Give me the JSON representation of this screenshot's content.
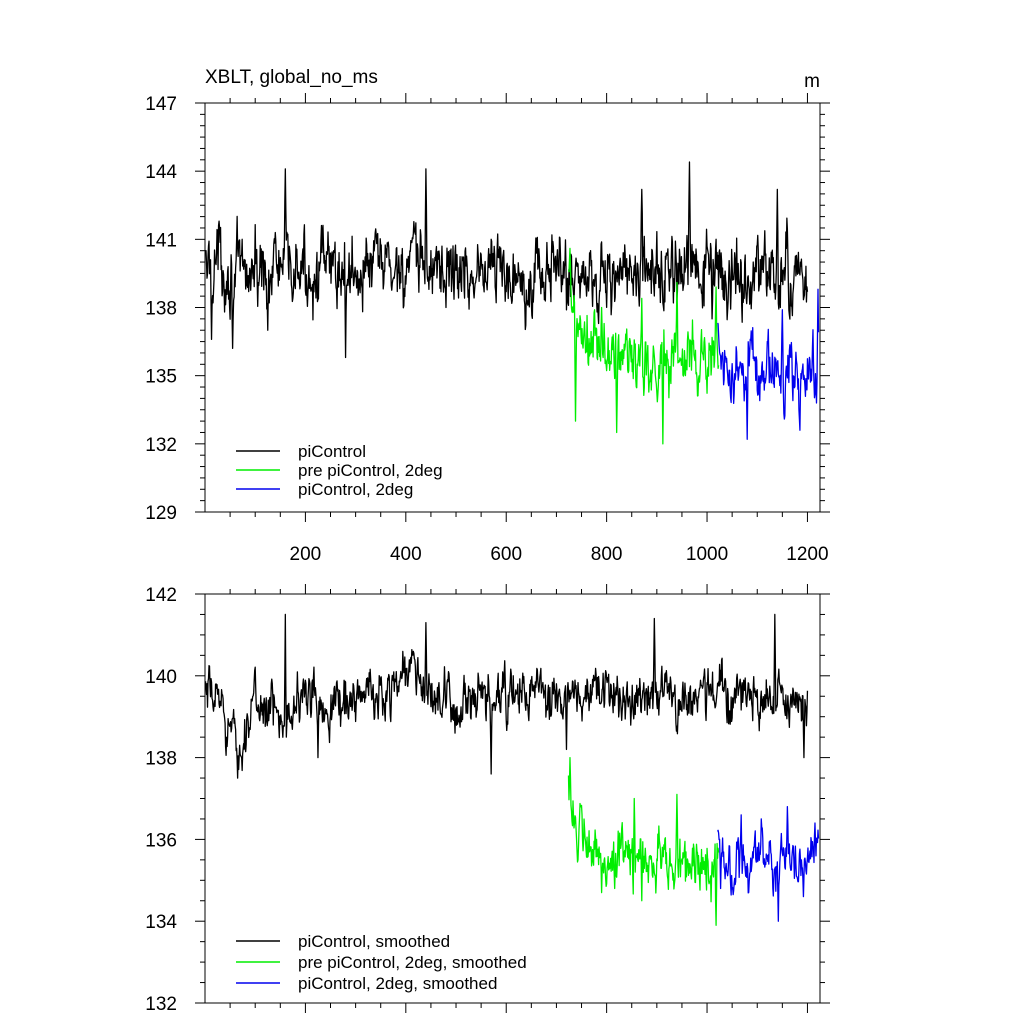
{
  "chart_data": [
    {
      "type": "line",
      "title": "XBLT, global_no_ms",
      "units": "m",
      "xlim": [
        0,
        1225
      ],
      "ylim": [
        129,
        147
      ],
      "yticks": [
        129,
        132,
        135,
        138,
        141,
        144,
        147
      ],
      "xticks": [
        200,
        400,
        600,
        800,
        1000,
        1200
      ],
      "show_x_tick_labels": true,
      "legend_placement": "bottom-left",
      "series": [
        {
          "name": "piControl",
          "color": "#000000",
          "x_range": [
            1,
            1200
          ],
          "keypoints": [
            [
              1,
              139.5
            ],
            [
              20,
              140.2
            ],
            [
              60,
              139.3
            ],
            [
              100,
              139.6
            ],
            [
              150,
              139.8
            ],
            [
              200,
              139.5
            ],
            [
              250,
              139.7
            ],
            [
              300,
              139.6
            ],
            [
              350,
              139.9
            ],
            [
              400,
              139.7
            ],
            [
              450,
              139.9
            ],
            [
              500,
              139.6
            ],
            [
              550,
              139.6
            ],
            [
              600,
              139.6
            ],
            [
              650,
              139.5
            ],
            [
              700,
              139.6
            ],
            [
              750,
              139.4
            ],
            [
              800,
              139.5
            ],
            [
              850,
              139.4
            ],
            [
              900,
              139.6
            ],
            [
              950,
              139.5
            ],
            [
              1000,
              139.6
            ],
            [
              1050,
              139.3
            ],
            [
              1100,
              139.4
            ],
            [
              1150,
              139.4
            ],
            [
              1200,
              139.2
            ]
          ],
          "noise": 1.15,
          "extremes": [
            [
              13,
              136.6
            ],
            [
              28,
              141.8
            ],
            [
              55,
              136.2
            ],
            [
              125,
              137.0
            ],
            [
              140,
              141.3
            ],
            [
              160,
              144.1
            ],
            [
              280,
              135.8
            ],
            [
              440,
              144.1
            ],
            [
              480,
              138.0
            ],
            [
              570,
              141.0
            ],
            [
              760,
              138.5
            ],
            [
              870,
              143.2
            ],
            [
              965,
              144.4
            ],
            [
              1010,
              137.5
            ],
            [
              1140,
              143.2
            ],
            [
              1210,
              139.5
            ]
          ]
        },
        {
          "name": "pre piControl, 2deg",
          "color": "#00ee00",
          "x_range": [
            724,
            1023
          ],
          "keypoints": [
            [
              724,
              138.8
            ],
            [
              735,
              137.5
            ],
            [
              760,
              136.3
            ],
            [
              800,
              135.9
            ],
            [
              850,
              135.8
            ],
            [
              900,
              135.5
            ],
            [
              950,
              135.9
            ],
            [
              1000,
              135.7
            ],
            [
              1023,
              135.9
            ]
          ],
          "noise": 1.05,
          "extremes": [
            [
              727,
              140.6
            ],
            [
              738,
              133.0
            ],
            [
              790,
              138.0
            ],
            [
              820,
              132.5
            ],
            [
              870,
              138.4
            ],
            [
              912,
              132.0
            ],
            [
              940,
              139.1
            ],
            [
              1018,
              138.9
            ]
          ]
        },
        {
          "name": "piControl, 2deg",
          "color": "#0000ee",
          "x_range": [
            1021,
            1222
          ],
          "keypoints": [
            [
              1021,
              136.5
            ],
            [
              1050,
              135.3
            ],
            [
              1100,
              135.2
            ],
            [
              1150,
              135.1
            ],
            [
              1200,
              135.0
            ],
            [
              1222,
              135.4
            ]
          ],
          "noise": 0.95,
          "extremes": [
            [
              1080,
              132.2
            ],
            [
              1150,
              137.9
            ],
            [
              1185,
              132.6
            ],
            [
              1221,
              138.8
            ],
            [
              1218,
              133.8
            ]
          ]
        }
      ]
    },
    {
      "type": "line",
      "title": "",
      "units": "",
      "xlim": [
        0,
        1225
      ],
      "ylim": [
        132,
        142
      ],
      "yticks": [
        132,
        134,
        136,
        138,
        140,
        142
      ],
      "xticks": [
        200,
        400,
        600,
        800,
        1000,
        1200
      ],
      "show_x_tick_labels": false,
      "legend_placement": "bottom-left",
      "series": [
        {
          "name": "piControl, smoothed",
          "color": "#000000",
          "x_range": [
            1,
            1200
          ],
          "keypoints": [
            [
              1,
              139.4
            ],
            [
              30,
              139.5
            ],
            [
              65,
              138.1
            ],
            [
              100,
              139.4
            ],
            [
              150,
              139.0
            ],
            [
              200,
              139.5
            ],
            [
              250,
              139.3
            ],
            [
              300,
              139.5
            ],
            [
              350,
              139.5
            ],
            [
              410,
              140.3
            ],
            [
              450,
              139.4
            ],
            [
              500,
              139.2
            ],
            [
              550,
              139.3
            ],
            [
              600,
              139.5
            ],
            [
              650,
              139.6
            ],
            [
              700,
              139.4
            ],
            [
              730,
              139.4
            ],
            [
              800,
              139.6
            ],
            [
              850,
              139.4
            ],
            [
              900,
              139.7
            ],
            [
              950,
              139.4
            ],
            [
              1000,
              139.6
            ],
            [
              1050,
              139.6
            ],
            [
              1100,
              139.4
            ],
            [
              1150,
              139.3
            ],
            [
              1200,
              139.2
            ]
          ],
          "noise": 0.45,
          "extremes": [
            [
              65,
              137.5
            ],
            [
              160,
              141.5
            ],
            [
              225,
              138.0
            ],
            [
              440,
              141.3
            ],
            [
              570,
              137.6
            ],
            [
              720,
              138.2
            ],
            [
              895,
              141.4
            ],
            [
              1135,
              141.5
            ],
            [
              1193,
              138.0
            ]
          ]
        },
        {
          "name": "pre piControl, 2deg, smoothed",
          "color": "#00ee00",
          "x_range": [
            724,
            1023
          ],
          "keypoints": [
            [
              724,
              137.6
            ],
            [
              740,
              136.1
            ],
            [
              770,
              135.6
            ],
            [
              800,
              135.5
            ],
            [
              850,
              135.6
            ],
            [
              900,
              135.5
            ],
            [
              950,
              135.4
            ],
            [
              1000,
              135.3
            ],
            [
              1023,
              135.4
            ]
          ],
          "noise": 0.5,
          "extremes": [
            [
              727,
              138.0
            ],
            [
              790,
              134.7
            ],
            [
              855,
              137.0
            ],
            [
              870,
              134.5
            ],
            [
              940,
              137.1
            ],
            [
              1018,
              133.9
            ]
          ]
        },
        {
          "name": "piControl, 2deg, smoothed",
          "color": "#0000ee",
          "x_range": [
            1021,
            1222
          ],
          "keypoints": [
            [
              1021,
              136.2
            ],
            [
              1050,
              135.3
            ],
            [
              1100,
              135.5
            ],
            [
              1150,
              135.3
            ],
            [
              1190,
              135.5
            ],
            [
              1222,
              136.0
            ]
          ],
          "noise": 0.45,
          "extremes": [
            [
              1027,
              134.8
            ],
            [
              1068,
              136.6
            ],
            [
              1108,
              136.5
            ],
            [
              1142,
              134.0
            ],
            [
              1160,
              136.8
            ],
            [
              1192,
              134.6
            ],
            [
              1215,
              136.4
            ]
          ]
        }
      ]
    }
  ]
}
